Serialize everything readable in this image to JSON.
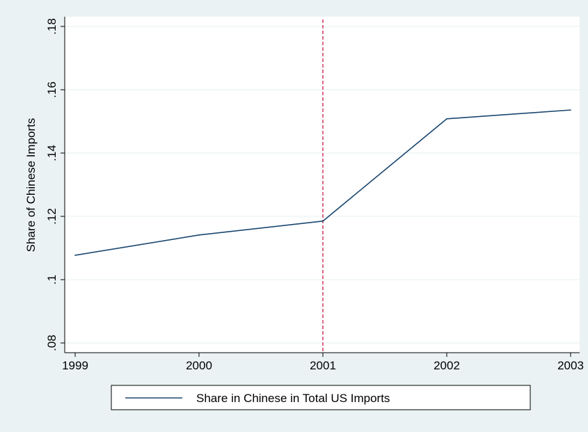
{
  "colors": {
    "background": "#eaf2f3",
    "plot_background": "#ffffff",
    "grid": "#eaf2f3",
    "series_line": "#1a476f",
    "reference_line": "#c10534",
    "axis": "#000000"
  },
  "chart_data": {
    "type": "line",
    "title": "",
    "xlabel": "",
    "ylabel": "Share of Chinese Imports",
    "x": [
      1999,
      2000,
      2001,
      2002,
      2003
    ],
    "xticks": [
      "1999",
      "2000",
      "2001",
      "2002",
      "2003"
    ],
    "xlim": [
      1999,
      2003
    ],
    "yticks": [
      ".08",
      ".1",
      ".12",
      ".14",
      ".16",
      ".18"
    ],
    "ytick_values": [
      0.08,
      0.1,
      0.12,
      0.14,
      0.16,
      0.18
    ],
    "ylim": [
      0.08,
      0.18
    ],
    "grid": "horizontal",
    "series": [
      {
        "name": "Share in Chinese in Total US Imports",
        "values": [
          0.1077,
          0.1141,
          0.1185,
          0.1508,
          0.1536
        ]
      }
    ],
    "reference_lines": [
      {
        "axis": "x",
        "value": 2001,
        "style": "dashed"
      }
    ],
    "legend": {
      "position": "bottom",
      "entries": [
        "Share in Chinese in Total US Imports"
      ]
    }
  }
}
